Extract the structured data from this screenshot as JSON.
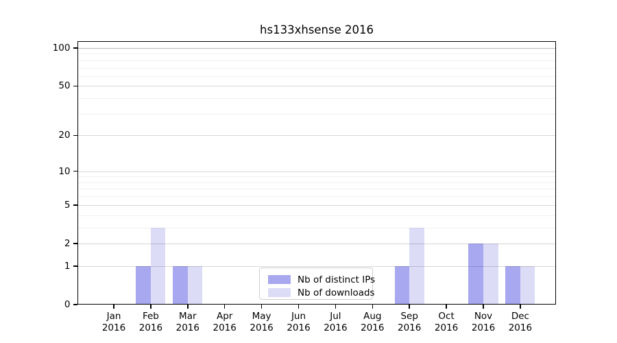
{
  "chart_data": {
    "type": "bar",
    "title": "hs133xhsense 2016",
    "categories": [
      {
        "month": "Jan",
        "year": "2016"
      },
      {
        "month": "Feb",
        "year": "2016"
      },
      {
        "month": "Mar",
        "year": "2016"
      },
      {
        "month": "Apr",
        "year": "2016"
      },
      {
        "month": "May",
        "year": "2016"
      },
      {
        "month": "Jun",
        "year": "2016"
      },
      {
        "month": "Jul",
        "year": "2016"
      },
      {
        "month": "Aug",
        "year": "2016"
      },
      {
        "month": "Sep",
        "year": "2016"
      },
      {
        "month": "Oct",
        "year": "2016"
      },
      {
        "month": "Nov",
        "year": "2016"
      },
      {
        "month": "Dec",
        "year": "2016"
      }
    ],
    "series": [
      {
        "name": "Nb of distinct IPs",
        "color": "#a8a8f0",
        "values": [
          0,
          1,
          1,
          0,
          0,
          0,
          0,
          0,
          1,
          0,
          2,
          1
        ]
      },
      {
        "name": "Nb of downloads",
        "color": "#dcdcf7",
        "values": [
          0,
          3,
          1,
          0,
          0,
          0,
          0,
          0,
          3,
          0,
          2,
          1
        ]
      }
    ],
    "yscale": "log1p",
    "ylim": [
      0,
      113
    ],
    "yticks": [
      0,
      1,
      2,
      5,
      10,
      20,
      50,
      100
    ],
    "minor_yticks": [
      3,
      4,
      6,
      7,
      8,
      9,
      30,
      40,
      60,
      70,
      80,
      90
    ],
    "grid": "horizontal",
    "legend_position": "inside-bottom-center"
  },
  "colors": {
    "background": "#ffffff",
    "axis": "#000000",
    "text": "#000000",
    "grid_major": "rgba(0,0,0,0.16)",
    "grid_minor": "rgba(0,0,0,0.06)",
    "grid_top": "rgba(0,0,0,0.28)"
  }
}
